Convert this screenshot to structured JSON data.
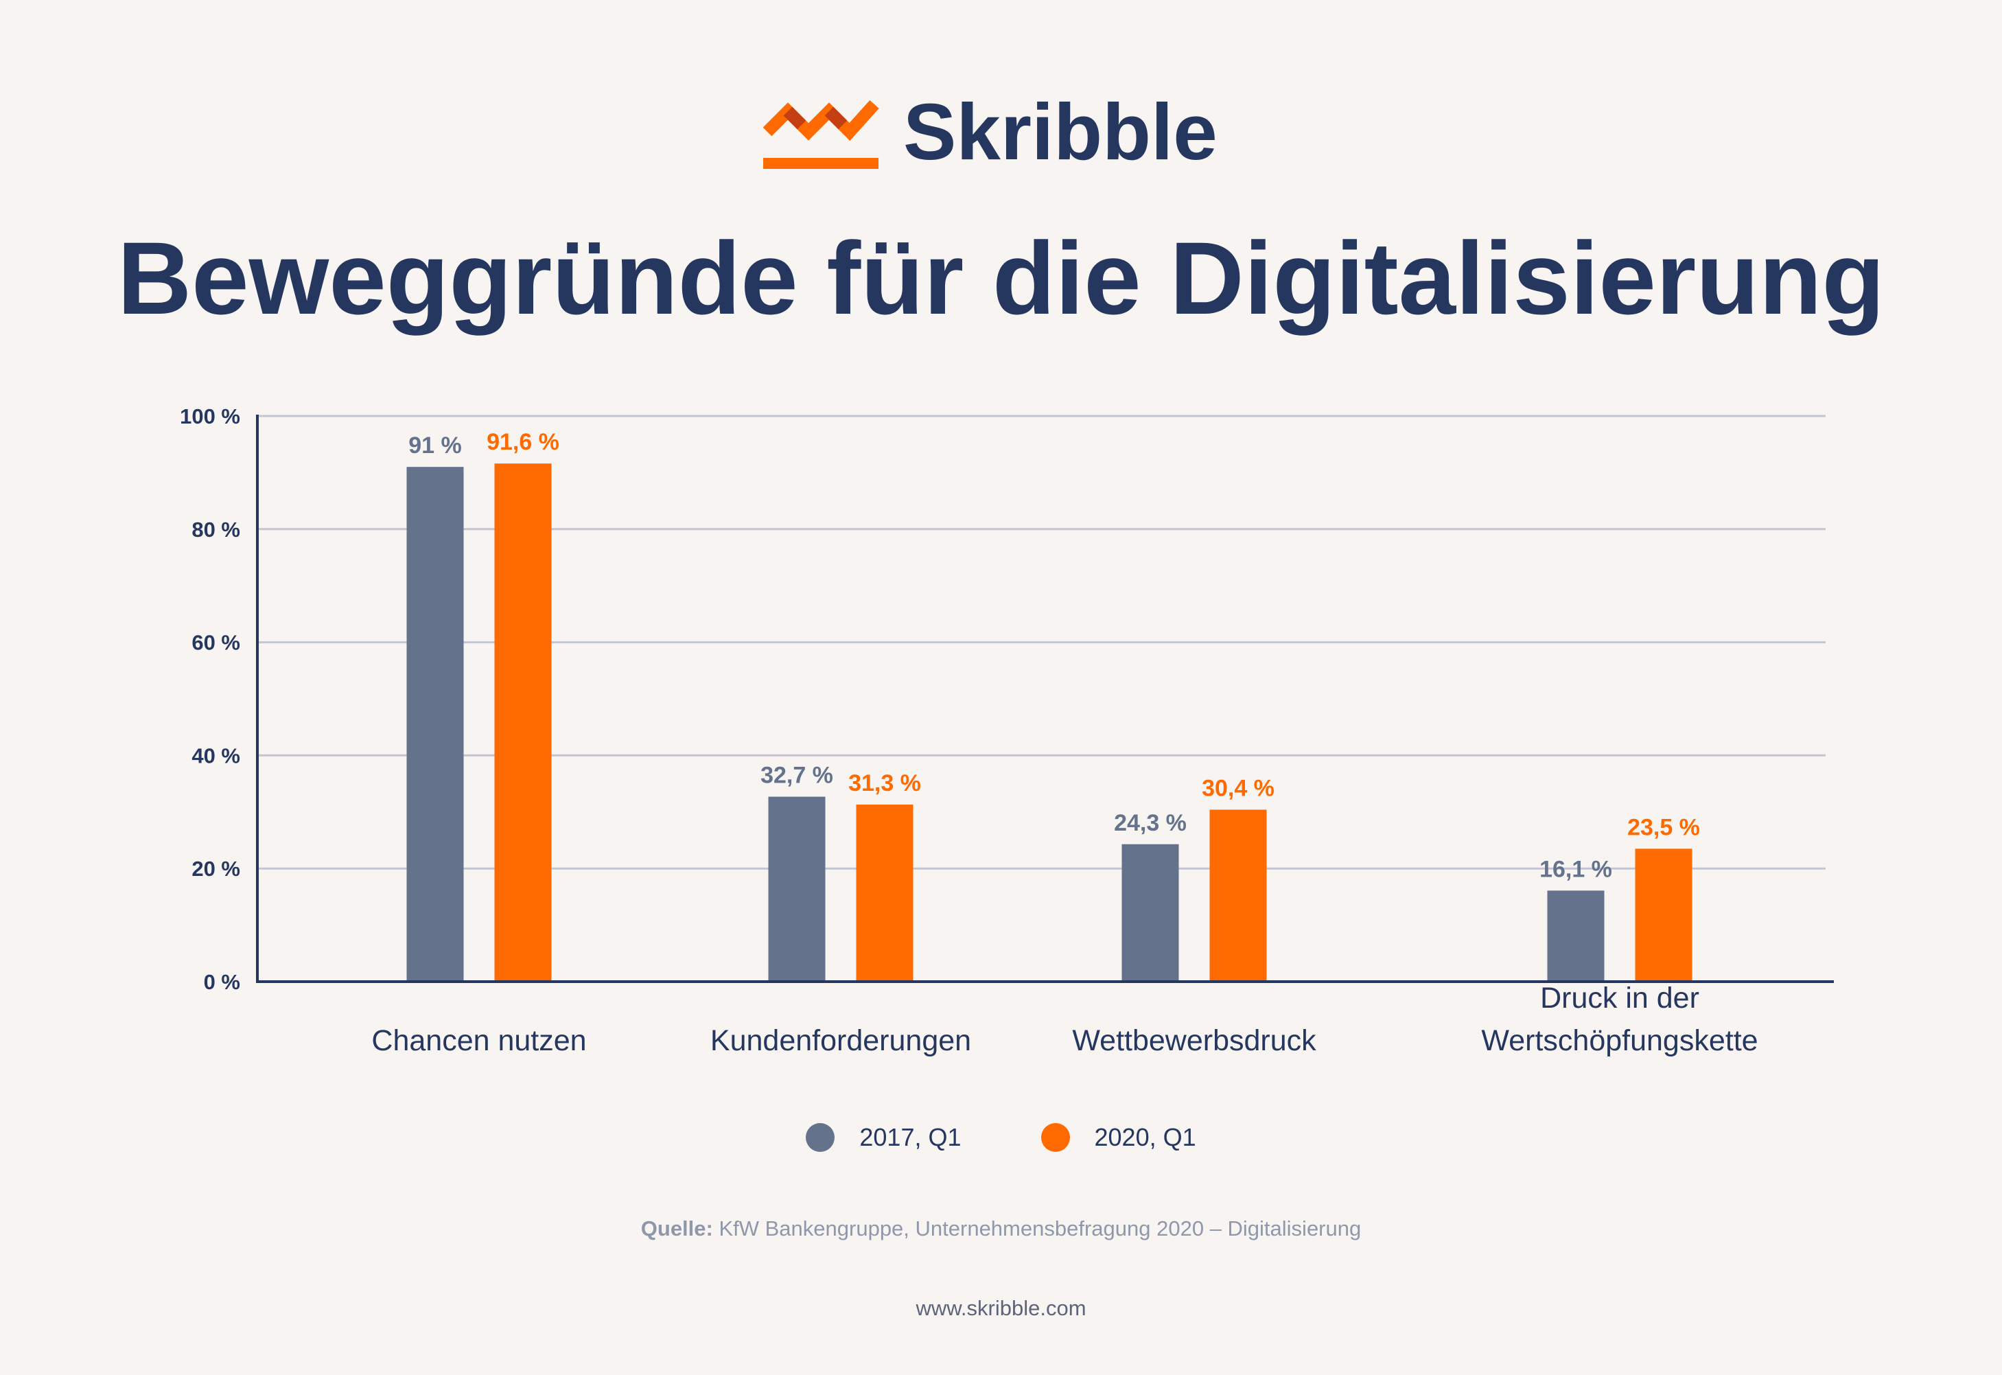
{
  "brand": {
    "name": "Skribble",
    "colors": {
      "navy": "#25365f",
      "orange": "#ff6a00",
      "slate": "#64728c",
      "grid": "#c3c6d2",
      "background": "#f7f4f2",
      "muted_text": "#8f98ab"
    }
  },
  "chart_data": {
    "type": "bar",
    "title": "Beweggründe für die Digitalisierung",
    "categories": [
      [
        "Chancen nutzen"
      ],
      [
        "Kundenforderungen"
      ],
      [
        "Wettbewerbsdruck"
      ],
      [
        "Druck in der",
        "Wertschöpfungskette"
      ]
    ],
    "series": [
      {
        "name": "2017, Q1",
        "color": "#64728c",
        "values": [
          91,
          32.7,
          24.3,
          16.1
        ],
        "labels": [
          "91 %",
          "32,7 %",
          "24,3 %",
          "16,1 %"
        ]
      },
      {
        "name": "2020, Q1",
        "color": "#ff6a00",
        "values": [
          91.6,
          31.3,
          30.4,
          23.5
        ],
        "labels": [
          "91,6 %",
          "31,3 %",
          "30,4 %",
          "23,5 %"
        ]
      }
    ],
    "yticks": [
      0,
      20,
      40,
      60,
      80,
      100
    ],
    "ytick_labels": [
      "0 %",
      "20 %",
      "40 %",
      "60 %",
      "80 %",
      "100 %"
    ],
    "ylim": [
      0,
      100
    ],
    "grid": true,
    "legend_position": "bottom",
    "xlabel": "",
    "ylabel": ""
  },
  "source": {
    "label": "Quelle:",
    "text": " KfW Bankengruppe, Unternehmensbefragung 2020 – Digitalisierung"
  },
  "website": "www.skribble.com"
}
